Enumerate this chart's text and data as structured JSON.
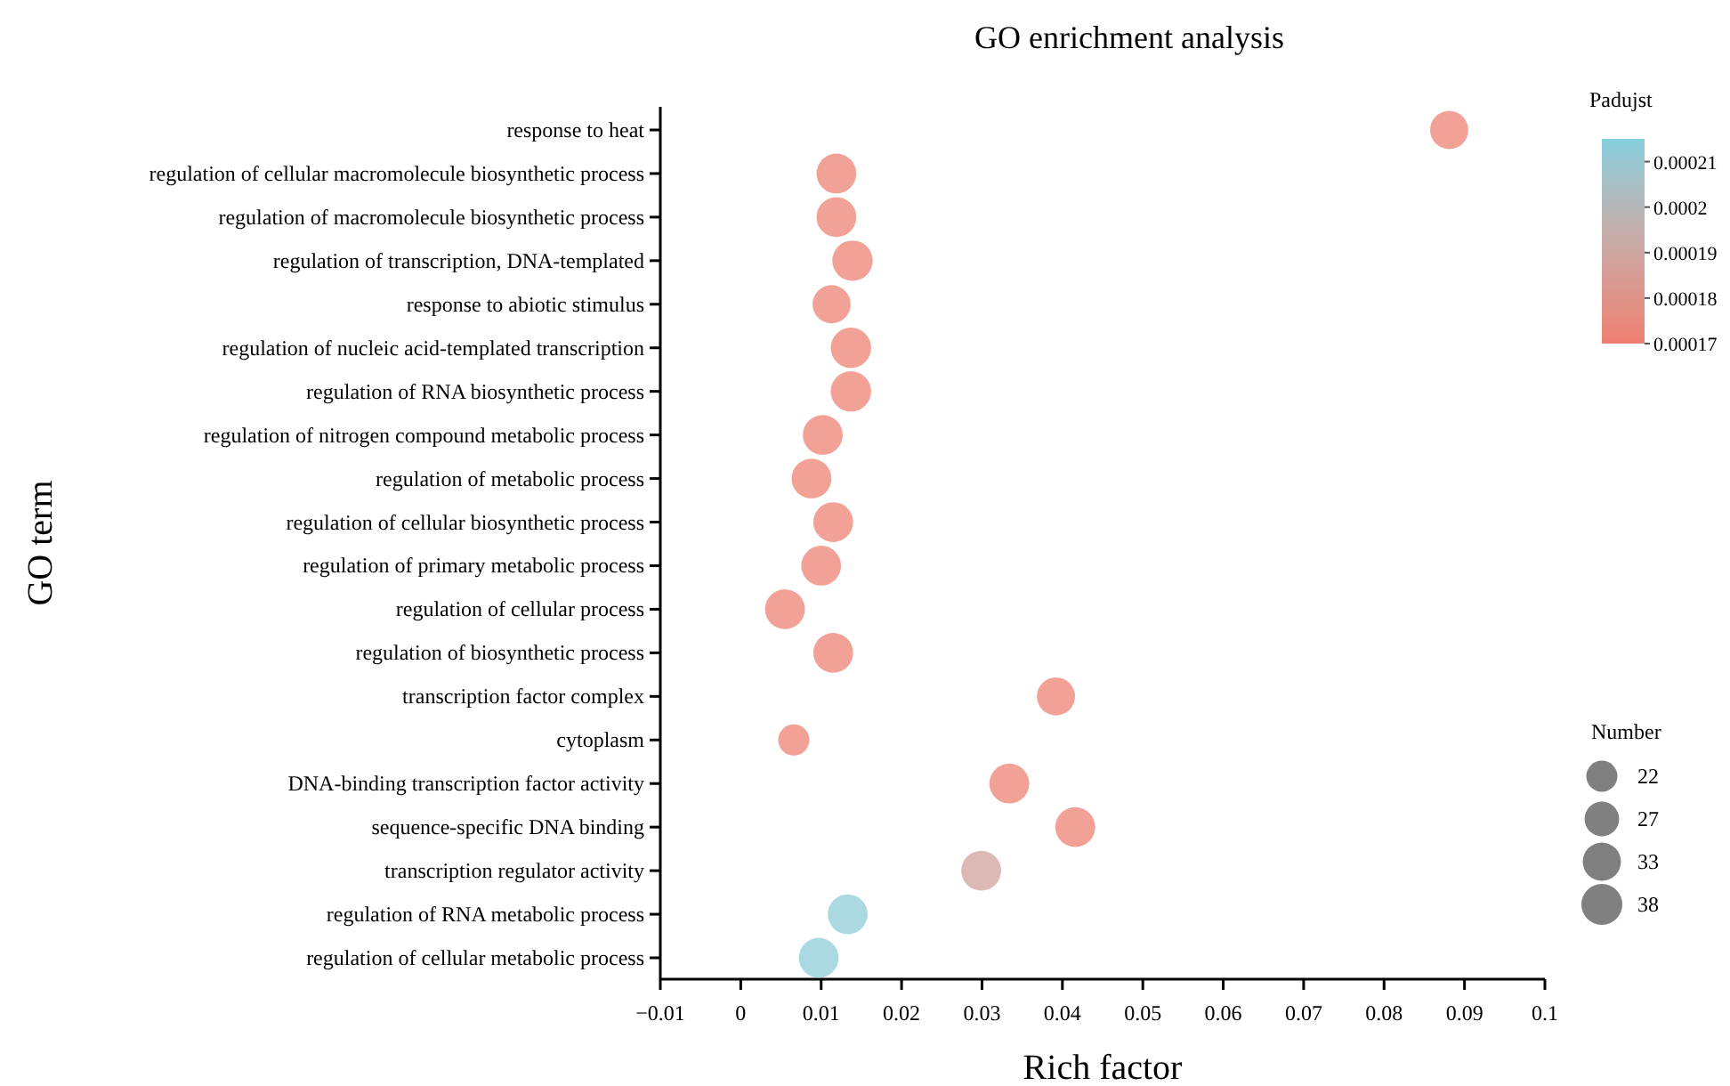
{
  "chart_data": {
    "type": "bubble",
    "title": "GO enrichment analysis",
    "xlabel": "Rich factor",
    "ylabel": "GO term",
    "orientation": "horizontal",
    "categories": [
      "response to heat",
      "regulation of cellular macromolecule biosynthetic process",
      "regulation of macromolecule biosynthetic process",
      "regulation of transcription, DNA-templated",
      "response to abiotic stimulus",
      "regulation of nucleic acid-templated transcription",
      "regulation of RNA biosynthetic process",
      "regulation of nitrogen compound metabolic process",
      "regulation of metabolic process",
      "regulation of cellular biosynthetic process",
      "regulation of primary metabolic process",
      "regulation of cellular process",
      "regulation of biosynthetic process",
      "transcription factor complex",
      "cytoplasm",
      "DNA-binding transcription factor activity",
      "sequence-specific DNA binding",
      "transcription regulator activity",
      "regulation of RNA metabolic process",
      "regulation of cellular metabolic process"
    ],
    "values": [
      0.0881,
      0.0119,
      0.0119,
      0.0139,
      0.0113,
      0.0137,
      0.0137,
      0.0102,
      0.0088,
      0.0115,
      0.01,
      0.0055,
      0.0115,
      0.0392,
      0.0066,
      0.0334,
      0.0416,
      0.0299,
      0.0133,
      0.0097
    ],
    "sizes": [
      33,
      36,
      36,
      37,
      33,
      37,
      37,
      36,
      36,
      36,
      36,
      36,
      36,
      33,
      22,
      36,
      36,
      36,
      36,
      36
    ],
    "size_legend": [
      22,
      27,
      33,
      38
    ],
    "legend_title": "Number",
    "cvalues": [
      0.000171,
      0.000171,
      0.000171,
      0.000171,
      0.000171,
      0.000171,
      0.000171,
      0.000171,
      0.000171,
      0.000171,
      0.000171,
      0.000171,
      0.000171,
      0.000171,
      0.000171,
      0.000171,
      0.000171,
      0.000188,
      0.000213,
      0.000213
    ],
    "clabel": "Padujst",
    "clim": [
      0.00017,
      0.000215
    ],
    "cticks": [
      0.00017,
      0.00018,
      0.00019,
      0.0002,
      0.00021
    ],
    "xlim": [
      -0.01,
      0.1
    ],
    "xticks": [
      -0.01,
      0,
      0.01,
      0.02,
      0.03,
      0.04,
      0.05,
      0.06,
      0.07,
      0.08,
      0.09,
      0.1
    ],
    "grid": false,
    "marker": "circle"
  }
}
